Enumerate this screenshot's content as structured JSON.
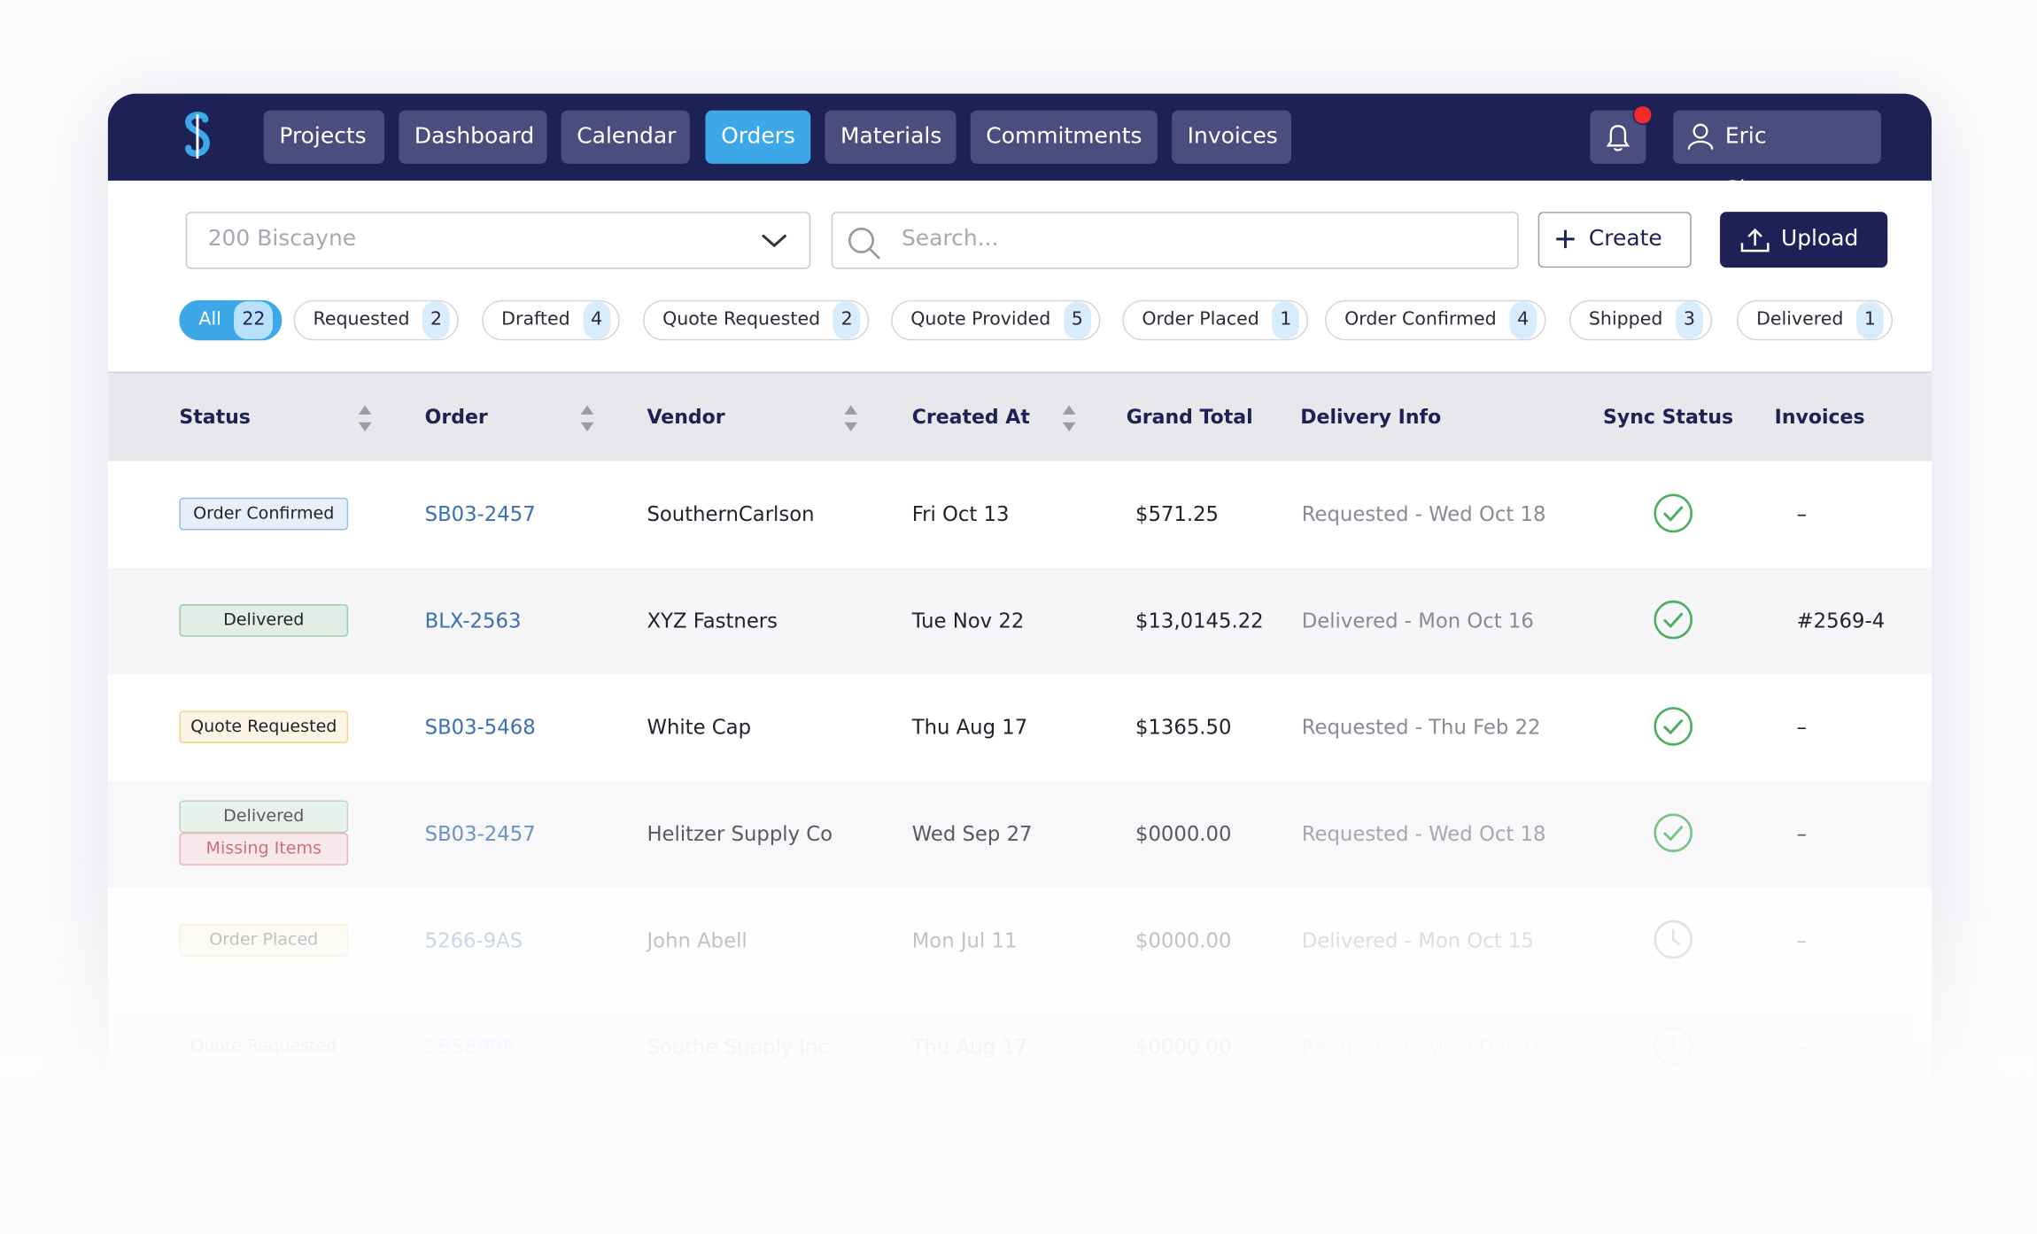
{
  "nav": {
    "items": [
      "Projects",
      "Dashboard",
      "Calendar",
      "Orders",
      "Materials",
      "Commitments",
      "Invoices"
    ],
    "active": 3,
    "user": "Eric Simpson"
  },
  "toolbar": {
    "project": "200 Biscayne",
    "search_placeholder": "Search...",
    "create": "Create",
    "upload": "Upload"
  },
  "filters": [
    {
      "label": "All",
      "count": "22"
    },
    {
      "label": "Requested",
      "count": "2"
    },
    {
      "label": "Drafted",
      "count": "4"
    },
    {
      "label": "Quote Requested",
      "count": "2"
    },
    {
      "label": "Quote Provided",
      "count": "5"
    },
    {
      "label": "Order Placed",
      "count": "1"
    },
    {
      "label": "Order Confirmed",
      "count": "4"
    },
    {
      "label": "Shipped",
      "count": "3"
    },
    {
      "label": "Delivered",
      "count": "1"
    }
  ],
  "table": {
    "headers": [
      {
        "text": "Status",
        "sortable": true
      },
      {
        "text": "Order",
        "sortable": true
      },
      {
        "text": "Vendor",
        "sortable": true
      },
      {
        "text": "Created At",
        "sortable": true
      },
      {
        "text": "Grand Total",
        "sortable": false
      },
      {
        "text": "Delivery Info",
        "sortable": false
      },
      {
        "text": "Sync Status",
        "sortable": false
      },
      {
        "text": "Invoices",
        "sortable": false
      }
    ],
    "rows": [
      {
        "status": [
          {
            "text": "Order Confirmed",
            "color": "#4a90d9"
          }
        ],
        "order": "SB03-2457",
        "vendor": "SouthernCarlson",
        "created": "Fri Oct 13",
        "total": "$571.25",
        "delivery": "Requested - Wed Oct 18",
        "icon": "check",
        "invoice": "–"
      },
      {
        "status": [
          {
            "text": "Delivered",
            "color": "#5cb270"
          }
        ],
        "order": "BLX-2563",
        "vendor": "XYZ Fastners",
        "created": "Tue Nov 22",
        "total": "$13,0145.22",
        "delivery": "Delivered - Mon Oct 16",
        "icon": "check",
        "invoice": "#2569-4"
      },
      {
        "status": [
          {
            "text": "Quote Requested",
            "color": "#e9b62a"
          }
        ],
        "order": "SB03-5468",
        "vendor": "White Cap",
        "created": "Thu Aug 17",
        "total": "$1365.50",
        "delivery": "Requested - Thu Feb 22",
        "icon": "check",
        "invoice": "–"
      },
      {
        "status": [
          {
            "text": "Delivered",
            "color": "#5cb270"
          },
          {
            "text": "Missing Items",
            "color": "#e05766"
          }
        ],
        "order": "SB03-2457",
        "vendor": "Helitzer Supply Co",
        "created": "Wed Sep 27",
        "total": "$0000.00",
        "delivery": "Requested - Wed Oct 18",
        "icon": "check",
        "invoice": "–"
      },
      {
        "status": [
          {
            "text": "Order Placed",
            "color": "#e9b62a"
          }
        ],
        "order": "5266-9AS",
        "vendor": "John Abell",
        "created": "Mon Jul 11",
        "total": "$0000.00",
        "delivery": "Delivered - Mon Oct 15",
        "icon": "clock",
        "invoice": "–"
      },
      {
        "status": [
          {
            "text": "Quote Requested",
            "color": "#e9b62a"
          }
        ],
        "order": "SB58996",
        "vendor": "Southe Supply Inc",
        "created": "Thu Aug 17",
        "total": "$0000.00",
        "delivery": "Requested - Wed Oct 18",
        "icon": "clock",
        "invoice": "–"
      }
    ]
  }
}
